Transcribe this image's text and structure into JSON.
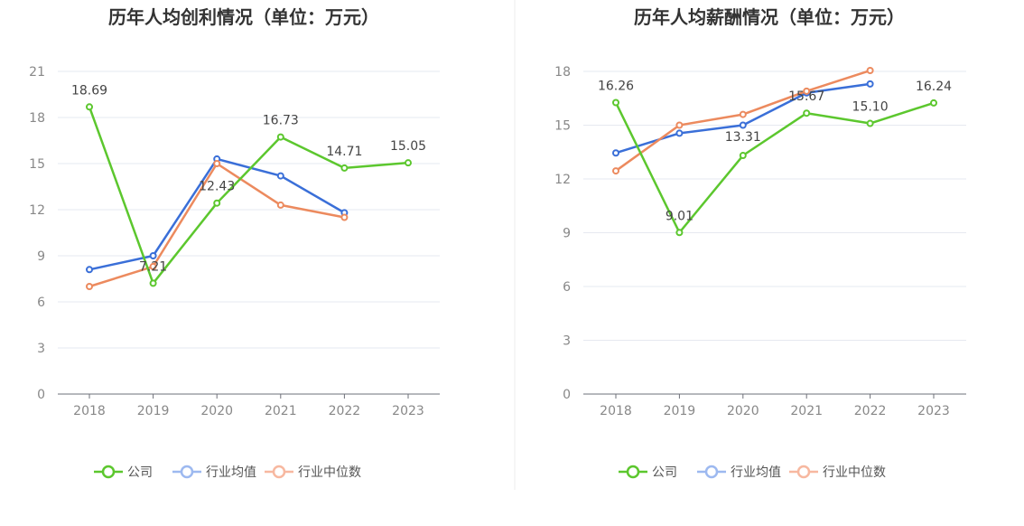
{
  "chart_data": [
    {
      "type": "line",
      "title": "历年人均创利情况（单位：万元）",
      "categories": [
        "2018",
        "2019",
        "2020",
        "2021",
        "2022",
        "2023"
      ],
      "ylim": [
        0,
        21
      ],
      "yticks": [
        0,
        3,
        6,
        9,
        12,
        15,
        18,
        21
      ],
      "xlabel": "",
      "ylabel": "",
      "legend_position": "bottom",
      "series": [
        {
          "name": "公司",
          "color": "#5cc72e",
          "values": [
            18.69,
            7.21,
            12.43,
            16.73,
            14.71,
            15.05
          ],
          "labels": [
            "18.69",
            "7.21",
            "12.43",
            "16.73",
            "14.71",
            "15.05"
          ],
          "show_labels": true
        },
        {
          "name": "行业均值",
          "color": "#3a6fd8",
          "values": [
            8.1,
            9.0,
            15.3,
            14.2,
            11.8,
            null
          ],
          "show_labels": false
        },
        {
          "name": "行业中位数",
          "color": "#ec8a5e",
          "values": [
            7.0,
            8.3,
            15.0,
            12.3,
            11.5,
            null
          ],
          "show_labels": false
        }
      ]
    },
    {
      "type": "line",
      "title": "历年人均薪酬情况（单位：万元）",
      "categories": [
        "2018",
        "2019",
        "2020",
        "2021",
        "2022",
        "2023"
      ],
      "ylim": [
        0,
        18
      ],
      "yticks": [
        0,
        3,
        6,
        9,
        12,
        15,
        18
      ],
      "xlabel": "",
      "ylabel": "",
      "legend_position": "bottom",
      "series": [
        {
          "name": "公司",
          "color": "#5cc72e",
          "values": [
            16.26,
            9.01,
            13.31,
            15.67,
            15.1,
            16.24
          ],
          "labels": [
            "16.26",
            "9.01",
            "13.31",
            "15.67",
            "15.10",
            "16.24"
          ],
          "show_labels": true
        },
        {
          "name": "行业均值",
          "color": "#3a6fd8",
          "values": [
            13.45,
            14.55,
            15.0,
            16.8,
            17.3,
            null
          ],
          "show_labels": false
        },
        {
          "name": "行业中位数",
          "color": "#ec8a5e",
          "values": [
            12.45,
            15.0,
            15.6,
            16.9,
            18.05,
            null
          ],
          "show_labels": false
        }
      ]
    }
  ],
  "legend_colors": {
    "公司": "#5cc72e",
    "行业均值": "#9db9f0",
    "行业中位数": "#f7b8a0"
  }
}
